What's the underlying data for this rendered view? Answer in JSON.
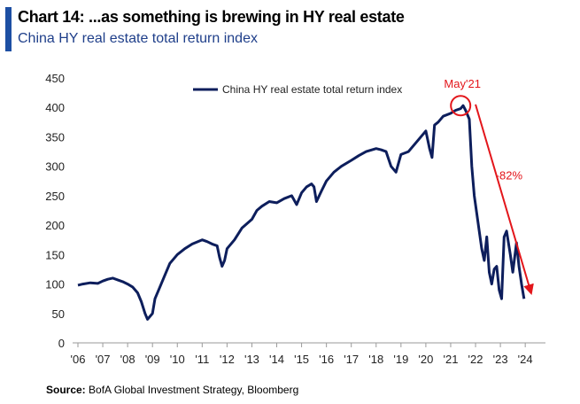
{
  "header": {
    "title": "Chart 14: ...as something is brewing in HY real estate",
    "subtitle": "China HY real estate total return index"
  },
  "footer": {
    "source_label": "Source:",
    "source_text": "BofA Global Investment Strategy, Bloomberg"
  },
  "colors": {
    "series": "#0d1e5c",
    "annotation": "#e3161b",
    "accent": "#1d4fa3"
  },
  "chart_data": {
    "type": "line",
    "title": "China HY real estate total return index",
    "xlabel": "",
    "ylabel": "",
    "xlim": [
      2006.0,
      2024.6
    ],
    "ylim": [
      0,
      450
    ],
    "y_ticks": [
      0,
      50,
      100,
      150,
      200,
      250,
      300,
      350,
      400,
      450
    ],
    "x_tick_values": [
      2006,
      2007,
      2008,
      2009,
      2010,
      2011,
      2012,
      2013,
      2014,
      2015,
      2016,
      2017,
      2018,
      2019,
      2020,
      2021,
      2022,
      2023,
      2024
    ],
    "x_tick_labels": [
      "'06",
      "'07",
      "'08",
      "'09",
      "'10",
      "'11",
      "'12",
      "'13",
      "'14",
      "'15",
      "'16",
      "'17",
      "'18",
      "'19",
      "'20",
      "'21",
      "'22",
      "'23",
      "'24"
    ],
    "grid": false,
    "legend": {
      "label": "China HY real estate total return index",
      "position": "top-center"
    },
    "series": [
      {
        "name": "China HY real estate total return index",
        "x": [
          2006.0,
          2006.2,
          2006.5,
          2006.8,
          2007.0,
          2007.2,
          2007.4,
          2007.6,
          2007.8,
          2008.0,
          2008.2,
          2008.4,
          2008.55,
          2008.7,
          2008.8,
          2008.9,
          2009.0,
          2009.1,
          2009.3,
          2009.5,
          2009.7,
          2010.0,
          2010.3,
          2010.6,
          2011.0,
          2011.2,
          2011.4,
          2011.6,
          2011.7,
          2011.8,
          2011.9,
          2012.0,
          2012.3,
          2012.6,
          2013.0,
          2013.2,
          2013.4,
          2013.7,
          2014.0,
          2014.3,
          2014.6,
          2014.8,
          2015.0,
          2015.2,
          2015.4,
          2015.5,
          2015.6,
          2015.8,
          2016.0,
          2016.3,
          2016.6,
          2017.0,
          2017.3,
          2017.6,
          2018.0,
          2018.2,
          2018.4,
          2018.6,
          2018.8,
          2019.0,
          2019.3,
          2019.5,
          2019.7,
          2020.0,
          2020.15,
          2020.25,
          2020.35,
          2020.5,
          2020.7,
          2021.0,
          2021.2,
          2021.4,
          2021.5,
          2021.6,
          2021.75,
          2021.85,
          2021.95,
          2022.05,
          2022.15,
          2022.25,
          2022.35,
          2022.45,
          2022.55,
          2022.65,
          2022.75,
          2022.85,
          2022.95,
          2023.05,
          2023.15,
          2023.25,
          2023.4,
          2023.5,
          2023.65,
          2023.75,
          2023.85,
          2023.95
        ],
        "values": [
          98,
          100,
          102,
          101,
          105,
          108,
          110,
          107,
          104,
          100,
          95,
          85,
          70,
          50,
          40,
          45,
          50,
          75,
          95,
          115,
          135,
          150,
          160,
          168,
          175,
          172,
          168,
          165,
          145,
          130,
          140,
          160,
          175,
          195,
          210,
          225,
          232,
          240,
          238,
          245,
          250,
          235,
          255,
          265,
          270,
          265,
          240,
          258,
          275,
          290,
          300,
          310,
          318,
          325,
          330,
          328,
          325,
          300,
          290,
          320,
          325,
          335,
          345,
          360,
          330,
          315,
          370,
          375,
          385,
          390,
          395,
          398,
          403,
          395,
          380,
          300,
          250,
          220,
          190,
          160,
          140,
          180,
          120,
          100,
          125,
          130,
          90,
          75,
          180,
          190,
          150,
          120,
          170,
          130,
          100,
          75
        ]
      }
    ],
    "annotations": [
      {
        "type": "circle",
        "label": "May'21",
        "x": 2021.4,
        "y": 403
      },
      {
        "type": "arrow",
        "label": "-82%",
        "from_x": 2022.0,
        "from_y": 405,
        "to_x": 2024.2,
        "to_y": 90
      }
    ]
  }
}
